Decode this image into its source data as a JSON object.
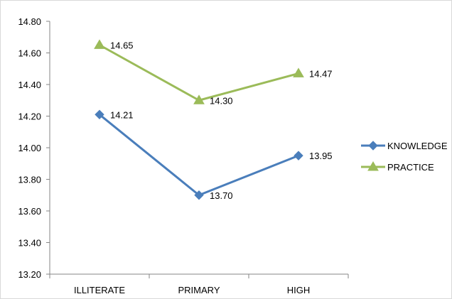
{
  "chart_data": {
    "type": "line",
    "title": "",
    "xlabel": "",
    "ylabel": "",
    "categories": [
      "ILLITERATE",
      "PRIMARY",
      "HIGH"
    ],
    "ylim": [
      13.2,
      14.8
    ],
    "yticks": [
      "13.20",
      "13.40",
      "13.60",
      "13.80",
      "14.00",
      "14.20",
      "14.40",
      "14.60",
      "14.80"
    ],
    "grid": false,
    "legend_position": "right",
    "series": [
      {
        "name": "KNOWLEDGE",
        "values": [
          14.21,
          13.7,
          13.95
        ],
        "labels": [
          "14.21",
          "13.70",
          "13.95"
        ],
        "color": "#4a7ebb",
        "marker": "diamond"
      },
      {
        "name": "PRACTICE",
        "values": [
          14.65,
          14.3,
          14.47
        ],
        "labels": [
          "14.65",
          "14.30",
          "14.47"
        ],
        "color": "#9bbb59",
        "marker": "triangle"
      }
    ]
  }
}
